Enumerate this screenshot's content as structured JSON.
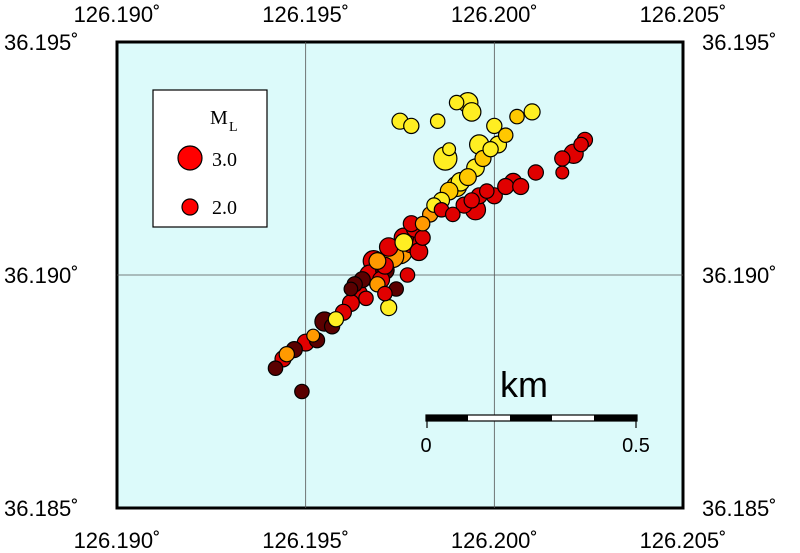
{
  "map": {
    "background_color": "#dcfafa",
    "lon_range": [
      126.19,
      126.205
    ],
    "lat_range": [
      36.185,
      36.195
    ],
    "lon_ticks": [
      "126.190˚",
      "126.195˚",
      "126.200˚",
      "126.205˚"
    ],
    "lat_ticks": [
      "36.195˚",
      "36.190˚",
      "36.185˚"
    ],
    "grid": true
  },
  "legend": {
    "title": "M",
    "title_subscript": "L",
    "items": [
      {
        "label": "3.0",
        "magnitude": 3.0,
        "color": "#ff0000"
      },
      {
        "label": "2.0",
        "magnitude": 2.0,
        "color": "#ff0000"
      }
    ]
  },
  "scale_bar": {
    "title": "km",
    "start_label": "0",
    "end_label": "0.5",
    "length_km": 0.5
  },
  "colors": {
    "dark": "#5a0000",
    "red": "#e00000",
    "orange": "#ff9a00",
    "amber": "#ffc800",
    "yellow": "#ffee22"
  },
  "chart_data": {
    "type": "scatter",
    "description_units": "lon (deg), lat (deg), local magnitude",
    "events": [
      {
        "lon": 126.1942,
        "lat": 36.188,
        "mag": 1.8,
        "c": "dark"
      },
      {
        "lon": 126.1944,
        "lat": 36.1882,
        "mag": 2.0,
        "c": "red"
      },
      {
        "lon": 126.1945,
        "lat": 36.1883,
        "mag": 1.9,
        "c": "orange"
      },
      {
        "lon": 126.1947,
        "lat": 36.1884,
        "mag": 2.0,
        "c": "dark"
      },
      {
        "lon": 126.195,
        "lat": 36.18855,
        "mag": 2.1,
        "c": "red"
      },
      {
        "lon": 126.1949,
        "lat": 36.1875,
        "mag": 1.8,
        "c": "dark"
      },
      {
        "lon": 126.1952,
        "lat": 36.1887,
        "mag": 1.6,
        "c": "orange"
      },
      {
        "lon": 126.1953,
        "lat": 36.1886,
        "mag": 1.9,
        "c": "dark"
      },
      {
        "lon": 126.1955,
        "lat": 36.189,
        "mag": 2.4,
        "c": "dark"
      },
      {
        "lon": 126.1957,
        "lat": 36.1889,
        "mag": 1.9,
        "c": "dark"
      },
      {
        "lon": 126.1958,
        "lat": 36.18905,
        "mag": 1.9,
        "c": "yellow"
      },
      {
        "lon": 126.196,
        "lat": 36.1892,
        "mag": 2.0,
        "c": "red"
      },
      {
        "lon": 126.1962,
        "lat": 36.1894,
        "mag": 2.1,
        "c": "red"
      },
      {
        "lon": 126.1964,
        "lat": 36.1896,
        "mag": 2.2,
        "c": "red"
      },
      {
        "lon": 126.1963,
        "lat": 36.1898,
        "mag": 1.9,
        "c": "dark"
      },
      {
        "lon": 126.1965,
        "lat": 36.1899,
        "mag": 2.0,
        "c": "dark"
      },
      {
        "lon": 126.1967,
        "lat": 36.19,
        "mag": 2.5,
        "c": "red"
      },
      {
        "lon": 126.1968,
        "lat": 36.1903,
        "mag": 2.6,
        "c": "red"
      },
      {
        "lon": 126.197,
        "lat": 36.1899,
        "mag": 2.1,
        "c": "red"
      },
      {
        "lon": 126.1971,
        "lat": 36.1901,
        "mag": 2.3,
        "c": "dark"
      },
      {
        "lon": 126.1973,
        "lat": 36.1904,
        "mag": 2.8,
        "c": "orange"
      },
      {
        "lon": 126.1972,
        "lat": 36.1906,
        "mag": 2.3,
        "c": "red"
      },
      {
        "lon": 126.1975,
        "lat": 36.1905,
        "mag": 3.0,
        "c": "orange"
      },
      {
        "lon": 126.1976,
        "lat": 36.1908,
        "mag": 2.4,
        "c": "red"
      },
      {
        "lon": 126.1978,
        "lat": 36.1907,
        "mag": 2.6,
        "c": "red"
      },
      {
        "lon": 126.198,
        "lat": 36.1905,
        "mag": 2.2,
        "c": "red"
      },
      {
        "lon": 126.1977,
        "lat": 36.19,
        "mag": 1.8,
        "c": "red"
      },
      {
        "lon": 126.1974,
        "lat": 36.1897,
        "mag": 1.8,
        "c": "dark"
      },
      {
        "lon": 126.1971,
        "lat": 36.1896,
        "mag": 1.8,
        "c": "red"
      },
      {
        "lon": 126.1969,
        "lat": 36.1898,
        "mag": 1.9,
        "c": "orange"
      },
      {
        "lon": 126.1978,
        "lat": 36.1911,
        "mag": 2.0,
        "c": "red"
      },
      {
        "lon": 126.1981,
        "lat": 36.1911,
        "mag": 1.8,
        "c": "orange"
      },
      {
        "lon": 126.1976,
        "lat": 36.1907,
        "mag": 2.2,
        "c": "yellow"
      },
      {
        "lon": 126.1971,
        "lat": 36.1902,
        "mag": 2.1,
        "c": "red"
      },
      {
        "lon": 126.1969,
        "lat": 36.1903,
        "mag": 2.1,
        "c": "orange"
      },
      {
        "lon": 126.1972,
        "lat": 36.1893,
        "mag": 2.0,
        "c": "yellow"
      },
      {
        "lon": 126.1983,
        "lat": 36.1913,
        "mag": 1.9,
        "c": "orange"
      },
      {
        "lon": 126.1984,
        "lat": 36.1915,
        "mag": 1.8,
        "c": "yellow"
      },
      {
        "lon": 126.1986,
        "lat": 36.1916,
        "mag": 2.0,
        "c": "yellow"
      },
      {
        "lon": 126.1988,
        "lat": 36.1918,
        "mag": 2.2,
        "c": "amber"
      },
      {
        "lon": 126.199,
        "lat": 36.1919,
        "mag": 2.5,
        "c": "amber"
      },
      {
        "lon": 126.1991,
        "lat": 36.192,
        "mag": 2.3,
        "c": "yellow"
      },
      {
        "lon": 126.1993,
        "lat": 36.1921,
        "mag": 2.1,
        "c": "amber"
      },
      {
        "lon": 126.1995,
        "lat": 36.1923,
        "mag": 2.2,
        "c": "yellow"
      },
      {
        "lon": 126.1997,
        "lat": 36.1925,
        "mag": 2.0,
        "c": "amber"
      },
      {
        "lon": 126.1999,
        "lat": 36.1927,
        "mag": 1.9,
        "c": "yellow"
      },
      {
        "lon": 126.2001,
        "lat": 36.1928,
        "mag": 2.1,
        "c": "yellow"
      },
      {
        "lon": 126.2003,
        "lat": 36.193,
        "mag": 1.8,
        "c": "amber"
      },
      {
        "lon": 126.1996,
        "lat": 36.1928,
        "mag": 2.4,
        "c": "yellow"
      },
      {
        "lon": 126.2,
        "lat": 36.1932,
        "mag": 1.9,
        "c": "yellow"
      },
      {
        "lon": 126.1994,
        "lat": 36.1935,
        "mag": 2.3,
        "c": "yellow"
      },
      {
        "lon": 126.1993,
        "lat": 36.1937,
        "mag": 2.5,
        "c": "yellow"
      },
      {
        "lon": 126.199,
        "lat": 36.1937,
        "mag": 1.8,
        "c": "yellow"
      },
      {
        "lon": 126.2006,
        "lat": 36.1934,
        "mag": 1.8,
        "c": "amber"
      },
      {
        "lon": 126.201,
        "lat": 36.1935,
        "mag": 2.0,
        "c": "yellow"
      },
      {
        "lon": 126.1985,
        "lat": 36.1933,
        "mag": 1.8,
        "c": "yellow"
      },
      {
        "lon": 126.1975,
        "lat": 36.1933,
        "mag": 2.0,
        "c": "yellow"
      },
      {
        "lon": 126.1978,
        "lat": 36.1932,
        "mag": 1.9,
        "c": "yellow"
      },
      {
        "lon": 126.1987,
        "lat": 36.1925,
        "mag": 2.9,
        "c": "yellow"
      },
      {
        "lon": 126.1988,
        "lat": 36.1927,
        "mag": 1.6,
        "c": "yellow"
      },
      {
        "lon": 126.1996,
        "lat": 36.1917,
        "mag": 2.0,
        "c": "red"
      },
      {
        "lon": 126.1998,
        "lat": 36.1918,
        "mag": 1.8,
        "c": "red"
      },
      {
        "lon": 126.2,
        "lat": 36.1917,
        "mag": 2.0,
        "c": "red"
      },
      {
        "lon": 126.2003,
        "lat": 36.1919,
        "mag": 2.0,
        "c": "red"
      },
      {
        "lon": 126.2005,
        "lat": 36.192,
        "mag": 2.1,
        "c": "red"
      },
      {
        "lon": 126.2007,
        "lat": 36.1919,
        "mag": 2.0,
        "c": "red"
      },
      {
        "lon": 126.1994,
        "lat": 36.1916,
        "mag": 1.9,
        "c": "red"
      },
      {
        "lon": 126.1992,
        "lat": 36.1915,
        "mag": 2.0,
        "c": "red"
      },
      {
        "lon": 126.1986,
        "lat": 36.1914,
        "mag": 1.8,
        "c": "red"
      },
      {
        "lon": 126.1981,
        "lat": 36.1908,
        "mag": 1.9,
        "c": "red"
      },
      {
        "lon": 126.1979,
        "lat": 36.191,
        "mag": 2.2,
        "c": "red"
      },
      {
        "lon": 126.1989,
        "lat": 36.1913,
        "mag": 1.8,
        "c": "red"
      },
      {
        "lon": 126.1995,
        "lat": 36.1914,
        "mag": 2.5,
        "c": "red"
      },
      {
        "lon": 126.2011,
        "lat": 36.1922,
        "mag": 1.9,
        "c": "red"
      },
      {
        "lon": 126.2018,
        "lat": 36.1925,
        "mag": 1.9,
        "c": "red"
      },
      {
        "lon": 126.2021,
        "lat": 36.1926,
        "mag": 2.4,
        "c": "red"
      },
      {
        "lon": 126.2023,
        "lat": 36.1928,
        "mag": 1.8,
        "c": "red"
      },
      {
        "lon": 126.2024,
        "lat": 36.1929,
        "mag": 1.9,
        "c": "red"
      },
      {
        "lon": 126.2018,
        "lat": 36.1922,
        "mag": 1.6,
        "c": "red"
      },
      {
        "lon": 126.1962,
        "lat": 36.1897,
        "mag": 1.7,
        "c": "dark"
      },
      {
        "lon": 126.1966,
        "lat": 36.1895,
        "mag": 1.8,
        "c": "red"
      }
    ]
  }
}
